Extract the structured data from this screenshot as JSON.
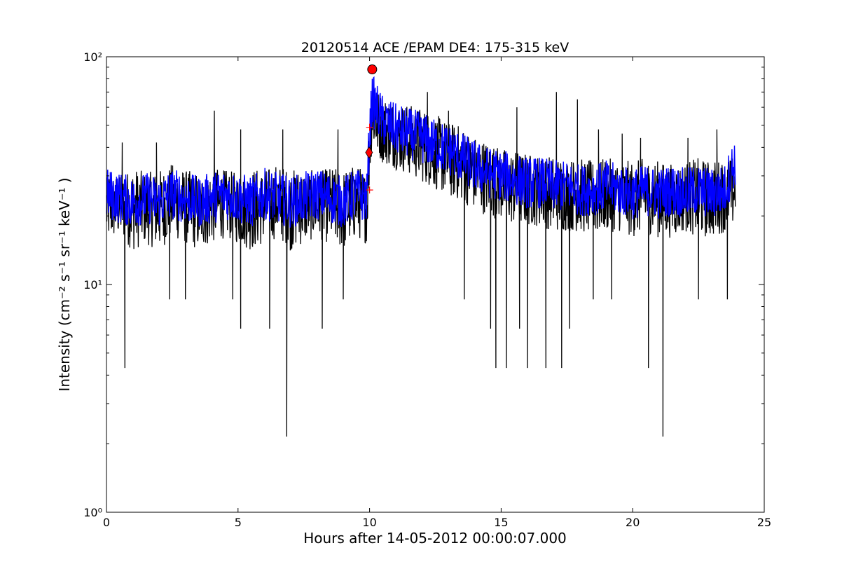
{
  "chart_data": {
    "type": "line",
    "title": "20120514 ACE /EPAM DE4: 175-315 keV",
    "xlabel": "Hours after 14-05-2012 00:00:07.000",
    "ylabel": "Intensity (cm⁻² s⁻¹ sr⁻¹ keV⁻¹ )",
    "xlim": [
      0,
      25
    ],
    "ylim": [
      1,
      100
    ],
    "yscale": "log",
    "grid": false,
    "x_ticks": [
      0,
      5,
      10,
      15,
      20,
      25
    ],
    "x_tick_labels": [
      "0",
      "5",
      "10",
      "15",
      "20",
      "25"
    ],
    "y_ticks": [
      1,
      10,
      100
    ],
    "y_tick_labels": [
      "10⁰",
      "10¹",
      "10²"
    ],
    "colors": {
      "raw": "#000000",
      "smoothed": "#0000ff",
      "markers": "#ff0000"
    },
    "series": [
      {
        "style": "black-line",
        "x": [
          0.0,
          0.5,
          1.0,
          1.5,
          2.0,
          2.5,
          3.0,
          3.5,
          4.0,
          4.5,
          5.0,
          5.5,
          6.0,
          6.5,
          7.0,
          7.5,
          8.0,
          8.5,
          9.0,
          9.5,
          9.9,
          10.1,
          10.3,
          10.5,
          11.0,
          11.5,
          12.0,
          12.5,
          13.0,
          13.5,
          14.0,
          14.5,
          15.0,
          15.5,
          16.0,
          16.5,
          17.0,
          17.5,
          18.0,
          18.5,
          19.0,
          19.5,
          20.0,
          20.5,
          21.0,
          21.5,
          22.0,
          22.5,
          23.0,
          23.5,
          23.9
        ],
        "values": [
          25,
          24,
          23,
          24,
          23,
          25,
          24,
          23,
          24,
          25,
          24,
          23,
          25,
          24,
          23,
          24,
          25,
          24,
          23,
          25,
          24,
          75,
          62,
          55,
          50,
          48,
          46,
          42,
          40,
          37,
          34,
          32,
          30,
          29,
          28,
          28,
          27,
          27,
          26,
          26,
          27,
          26,
          25,
          26,
          25,
          26,
          25,
          26,
          25,
          26,
          27
        ],
        "upper_envelope": [
          32,
          30,
          33,
          31,
          32,
          34,
          32,
          31,
          33,
          32,
          31,
          33,
          32,
          34,
          32,
          33,
          31,
          33,
          32,
          34,
          31,
          80,
          72,
          68,
          64,
          62,
          60,
          56,
          52,
          50,
          45,
          43,
          40,
          39,
          38,
          37,
          37,
          36,
          36,
          35,
          36,
          35,
          35,
          36,
          35,
          34,
          35,
          36,
          35,
          36,
          37
        ],
        "lower_envelope": [
          15,
          16,
          14,
          15,
          14,
          16,
          15,
          14,
          15,
          16,
          15,
          14,
          15,
          16,
          14,
          15,
          16,
          15,
          14,
          16,
          15,
          40,
          36,
          34,
          32,
          30,
          28,
          26,
          24,
          23,
          21,
          20,
          19,
          18,
          18,
          18,
          17,
          17,
          17,
          16,
          17,
          17,
          16,
          17,
          16,
          16,
          17,
          16,
          16,
          17,
          18
        ],
        "dips": [
          [
            0.7,
            4.3
          ],
          [
            2.4,
            8.6
          ],
          [
            3.0,
            8.6
          ],
          [
            4.8,
            8.6
          ],
          [
            5.1,
            6.4
          ],
          [
            6.2,
            6.4
          ],
          [
            6.85,
            2.15
          ],
          [
            8.2,
            6.4
          ],
          [
            9.0,
            8.6
          ],
          [
            13.6,
            8.6
          ],
          [
            14.6,
            6.4
          ],
          [
            14.8,
            4.3
          ],
          [
            15.2,
            4.3
          ],
          [
            15.7,
            6.4
          ],
          [
            16.0,
            4.3
          ],
          [
            16.7,
            4.3
          ],
          [
            17.3,
            4.3
          ],
          [
            17.6,
            6.4
          ],
          [
            18.5,
            8.6
          ],
          [
            19.2,
            8.6
          ],
          [
            20.6,
            4.3
          ],
          [
            21.15,
            2.15
          ],
          [
            22.5,
            8.6
          ],
          [
            23.6,
            8.6
          ]
        ],
        "spikes": [
          [
            0.6,
            42
          ],
          [
            1.9,
            42
          ],
          [
            4.1,
            58
          ],
          [
            5.1,
            48
          ],
          [
            6.7,
            48
          ],
          [
            8.8,
            48
          ],
          [
            10.15,
            78
          ],
          [
            12.2,
            70
          ],
          [
            13.0,
            58
          ],
          [
            15.6,
            60
          ],
          [
            17.1,
            70
          ],
          [
            17.9,
            65
          ],
          [
            18.7,
            48
          ],
          [
            19.6,
            46
          ],
          [
            20.3,
            44
          ],
          [
            22.1,
            44
          ],
          [
            23.2,
            48
          ]
        ]
      },
      {
        "style": "blue-line",
        "x": [
          0.0,
          0.5,
          1.0,
          1.5,
          2.0,
          2.5,
          3.0,
          3.5,
          4.0,
          4.5,
          5.0,
          5.5,
          6.0,
          6.5,
          7.0,
          7.5,
          8.0,
          8.5,
          9.0,
          9.5,
          9.9,
          10.1,
          10.3,
          10.5,
          11.0,
          11.5,
          12.0,
          12.5,
          13.0,
          13.5,
          14.0,
          14.5,
          15.0,
          15.5,
          16.0,
          16.5,
          17.0,
          17.5,
          18.0,
          18.5,
          19.0,
          19.5,
          20.0,
          20.5,
          21.0,
          21.5,
          22.0,
          22.5,
          23.0,
          23.5,
          23.9
        ],
        "values": [
          25,
          24,
          23,
          24,
          23,
          25,
          24,
          23,
          24,
          25,
          24,
          23,
          25,
          24,
          23,
          24,
          25,
          24,
          23,
          25,
          24,
          65,
          58,
          52,
          48,
          46,
          44,
          41,
          39,
          36,
          33,
          31,
          30,
          29,
          28,
          28,
          27,
          27,
          26,
          26,
          27,
          26,
          25,
          26,
          25,
          26,
          25,
          26,
          25,
          26,
          35
        ],
        "band": 0.12
      }
    ],
    "markers": [
      {
        "shape": "circle",
        "x": 10.1,
        "y": 88
      },
      {
        "shape": "diamond",
        "x": 9.98,
        "y": 38
      },
      {
        "shape": "plus",
        "x": 10.0,
        "y": 49
      },
      {
        "shape": "plus",
        "x": 10.0,
        "y": 26
      }
    ]
  }
}
